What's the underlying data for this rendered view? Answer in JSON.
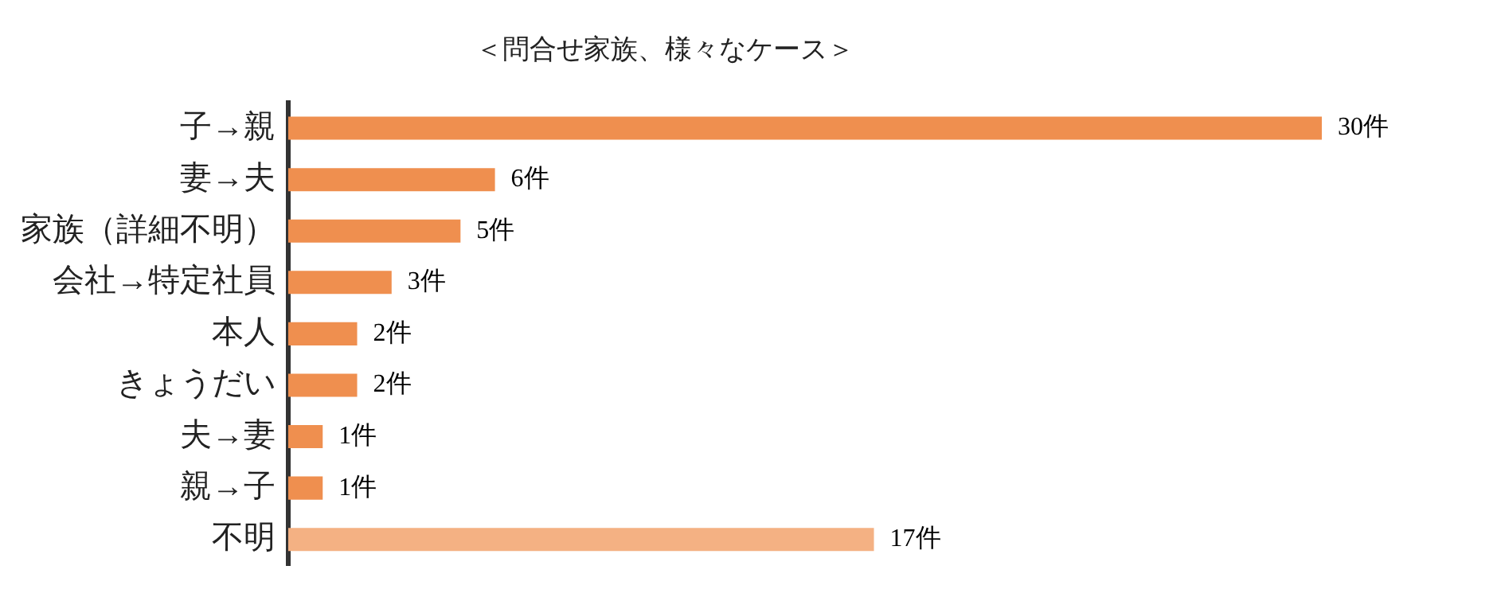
{
  "chart_data": {
    "type": "bar",
    "orientation": "horizontal",
    "title": "＜問合せ家族、様々なケース＞",
    "categories": [
      "子→親",
      "妻→夫",
      "家族（詳細不明）",
      "会社→特定社員",
      "本人",
      "きょうだい",
      "夫→妻",
      "親→子",
      "不明"
    ],
    "values": [
      30,
      6,
      5,
      3,
      2,
      2,
      1,
      1,
      17
    ],
    "colors": [
      "#ef8f4f",
      "#ef8f4f",
      "#ef8f4f",
      "#ef8f4f",
      "#ef8f4f",
      "#ef8f4f",
      "#ef8f4f",
      "#ef8f4f",
      "#f4b183"
    ],
    "value_labels": [
      "30件",
      "6件",
      "5件",
      "3件",
      "2件",
      "2件",
      "1件",
      "1件",
      "17件"
    ],
    "legend": false
  }
}
